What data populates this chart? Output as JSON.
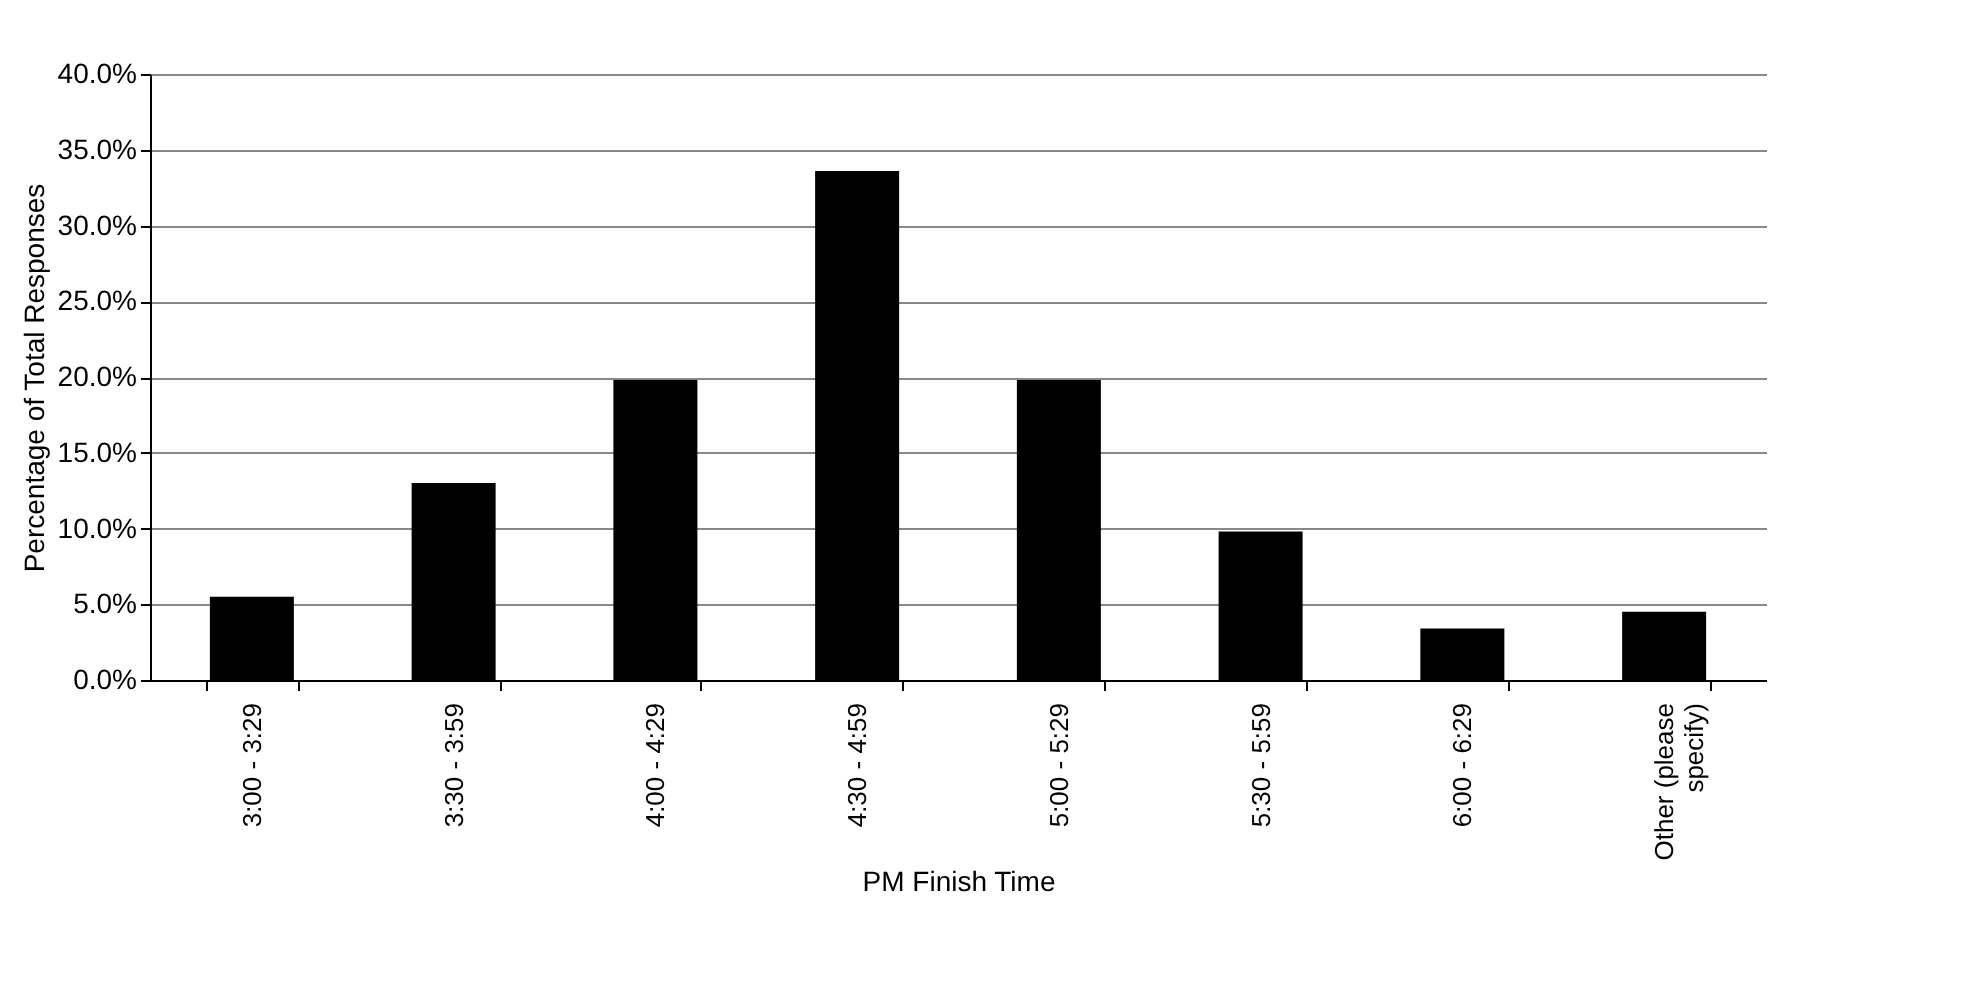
{
  "chart_data": {
    "type": "bar",
    "xlabel": "PM Finish Time",
    "ylabel": "Percentage of Total Responses",
    "categories": [
      "3:00 - 3:29",
      "3:30 - 3:59",
      "4:00 - 4:29",
      "4:30 - 4:59",
      "5:00 - 5:29",
      "5:30 - 5:59",
      "6:00 - 6:29",
      "Other (please specify)"
    ],
    "values": [
      5.5,
      13.0,
      19.8,
      33.6,
      19.8,
      9.8,
      3.4,
      4.5
    ],
    "color": "#000000",
    "ylim": [
      0,
      40
    ],
    "yticks": [
      {
        "value": 0,
        "label": "0.0%"
      },
      {
        "value": 5,
        "label": "5.0%"
      },
      {
        "value": 10,
        "label": "10.0%"
      },
      {
        "value": 15,
        "label": "15.0%"
      },
      {
        "value": 20,
        "label": "20.0%"
      },
      {
        "value": 25,
        "label": "25.0%"
      },
      {
        "value": 30,
        "label": "30.0%"
      },
      {
        "value": 35,
        "label": "35.0%"
      },
      {
        "value": 40,
        "label": "40.0%"
      }
    ],
    "grid": "y"
  }
}
